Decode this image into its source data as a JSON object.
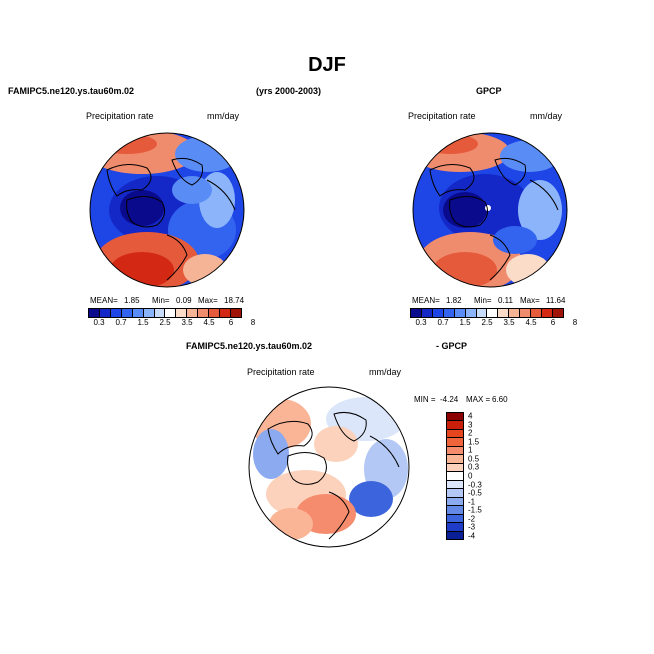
{
  "title": "DJF",
  "panels": {
    "model": {
      "case_name": "FAMIPC5.ne120.ys.tau60m.02",
      "years": "(yrs 2000-2003)",
      "label_left": "Precipitation rate",
      "label_right": "mm/day",
      "mean_label": "MEAN=",
      "mean_value": "1.85",
      "min_label": "Min=",
      "min_value": "0.09",
      "max_label": "Max=",
      "max_value": "18.74"
    },
    "obs": {
      "case_name": "GPCP",
      "label_left": "Precipitation rate",
      "label_right": "mm/day",
      "mean_label": "MEAN=",
      "mean_value": "1.82",
      "min_label": "Min=",
      "min_value": "0.11",
      "max_label": "Max=",
      "max_value": "11.64"
    },
    "diff": {
      "case_left": "FAMIPC5.ne120.ys.tau60m.02",
      "case_right": "- GPCP",
      "label_left": "Precipitation rate",
      "label_right": "mm/day",
      "min_label": "MIN =",
      "min_value": "-4.24",
      "max_label": "MAX =",
      "max_value": "6.60"
    }
  },
  "colorbar_abs": {
    "colors": [
      "#0a0a8c",
      "#1428c8",
      "#1e46e6",
      "#3264f0",
      "#5a8cf5",
      "#8cb4fa",
      "#c8dcfa",
      "#ffffff",
      "#fadcc8",
      "#f5b496",
      "#f08c6e",
      "#e65a3c",
      "#d22814",
      "#a01408"
    ],
    "tick_labels": [
      "0.3",
      "0.7",
      "1.5",
      "2.5",
      "3.5",
      "4.5",
      "6",
      "8"
    ]
  },
  "colorbar_diff": {
    "colors": [
      "#8b0000",
      "#c81e0a",
      "#e6461e",
      "#f0643c",
      "#f58c6e",
      "#fab496",
      "#fcd2bc",
      "#ffffff",
      "#dce6fa",
      "#b4c8f5",
      "#8caaf0",
      "#6488e6",
      "#3c64dc",
      "#1e3cc8",
      "#0a1e96"
    ],
    "tick_labels": [
      "4",
      "3",
      "2",
      "1.5",
      "1",
      "0.5",
      "0.3",
      "0",
      "-0.3",
      "-0.5",
      "-1",
      "-1.5",
      "-2",
      "-3",
      "-4"
    ]
  }
}
